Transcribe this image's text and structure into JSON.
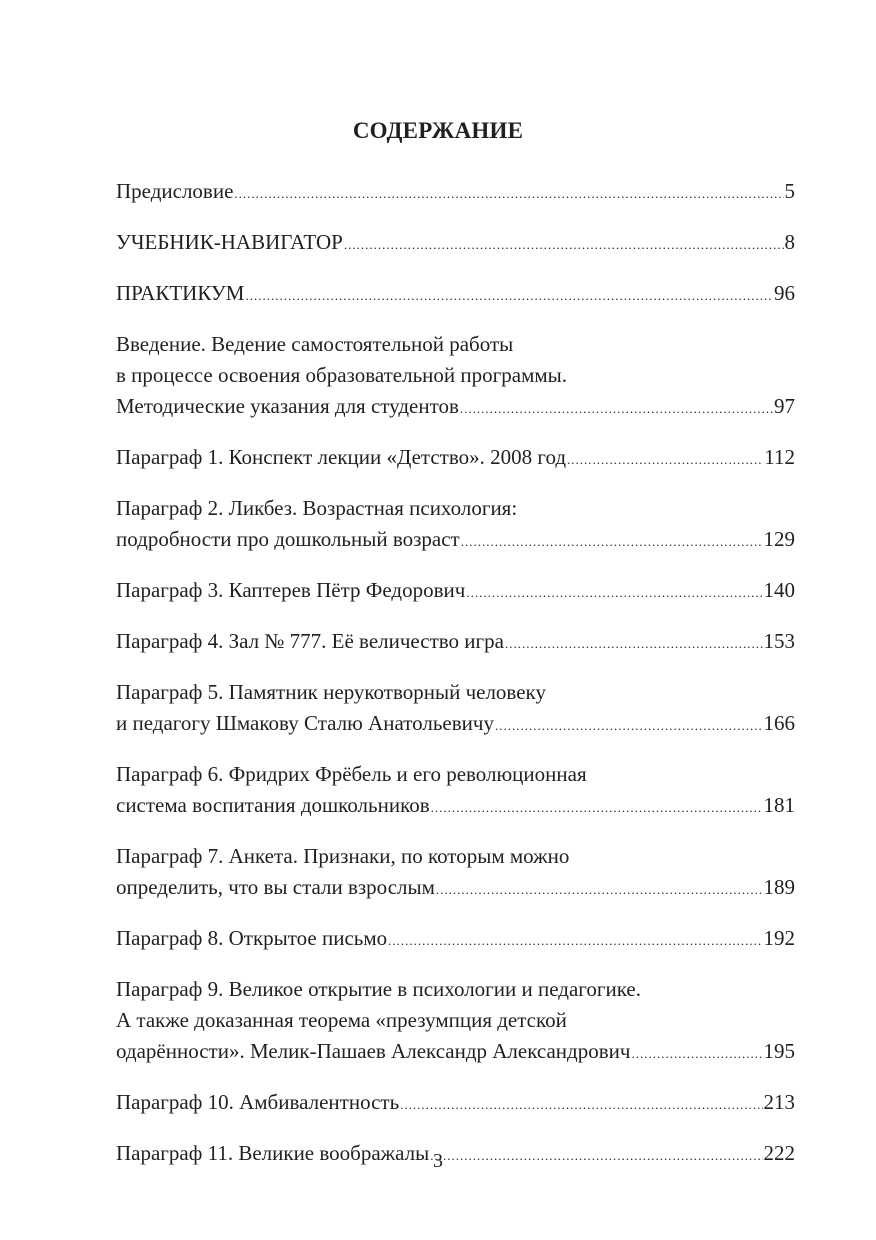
{
  "title": "СОДЕРЖАНИЕ",
  "entries": [
    {
      "lines": [
        "Предисловие"
      ],
      "page": "5"
    },
    {
      "lines": [
        "УЧЕБНИК-НАВИГАТОР"
      ],
      "page": "8"
    },
    {
      "lines": [
        "ПРАКТИКУМ"
      ],
      "page": "96"
    },
    {
      "lines": [
        "Введение. Ведение самостоятельной работы",
        "в процессе освоения образовательной программы.",
        "Методические указания для студентов"
      ],
      "page": "97"
    },
    {
      "lines": [
        "Параграф 1. Конспект лекции «Детство». 2008 год"
      ],
      "page": "112"
    },
    {
      "lines": [
        "Параграф 2. Ликбез. Возрастная психология:",
        "подробности про дошкольный возраст"
      ],
      "page": "129"
    },
    {
      "lines": [
        "Параграф 3. Каптерев Пётр Федорович"
      ],
      "page": "140"
    },
    {
      "lines": [
        "Параграф 4. Зал № 777. Её величество игра"
      ],
      "page": "153"
    },
    {
      "lines": [
        "Параграф 5. Памятник нерукотворный человеку",
        "и педагогу Шмакову Сталю Анатольевичу"
      ],
      "page": "166"
    },
    {
      "lines": [
        "Параграф 6. Фридрих Фрёбель и его революционная",
        "система воспитания дошкольников"
      ],
      "page": "181"
    },
    {
      "lines": [
        "Параграф 7. Анкета. Признаки, по которым можно",
        "определить, что вы стали взрослым"
      ],
      "page": "189"
    },
    {
      "lines": [
        "Параграф 8. Открытое письмо"
      ],
      "page": "192"
    },
    {
      "lines": [
        "Параграф 9. Великое открытие в психологии и педагогике.",
        "А также доказанная теорема «презумпция детской",
        "одарённости». Мелик-Пашаев Александр Александрович"
      ],
      "page": "195"
    },
    {
      "lines": [
        "Параграф 10. Амбивалентность"
      ],
      "page": "213"
    },
    {
      "lines": [
        "Параграф 11. Великие воображалы"
      ],
      "page": "222"
    }
  ],
  "page_number": "3"
}
